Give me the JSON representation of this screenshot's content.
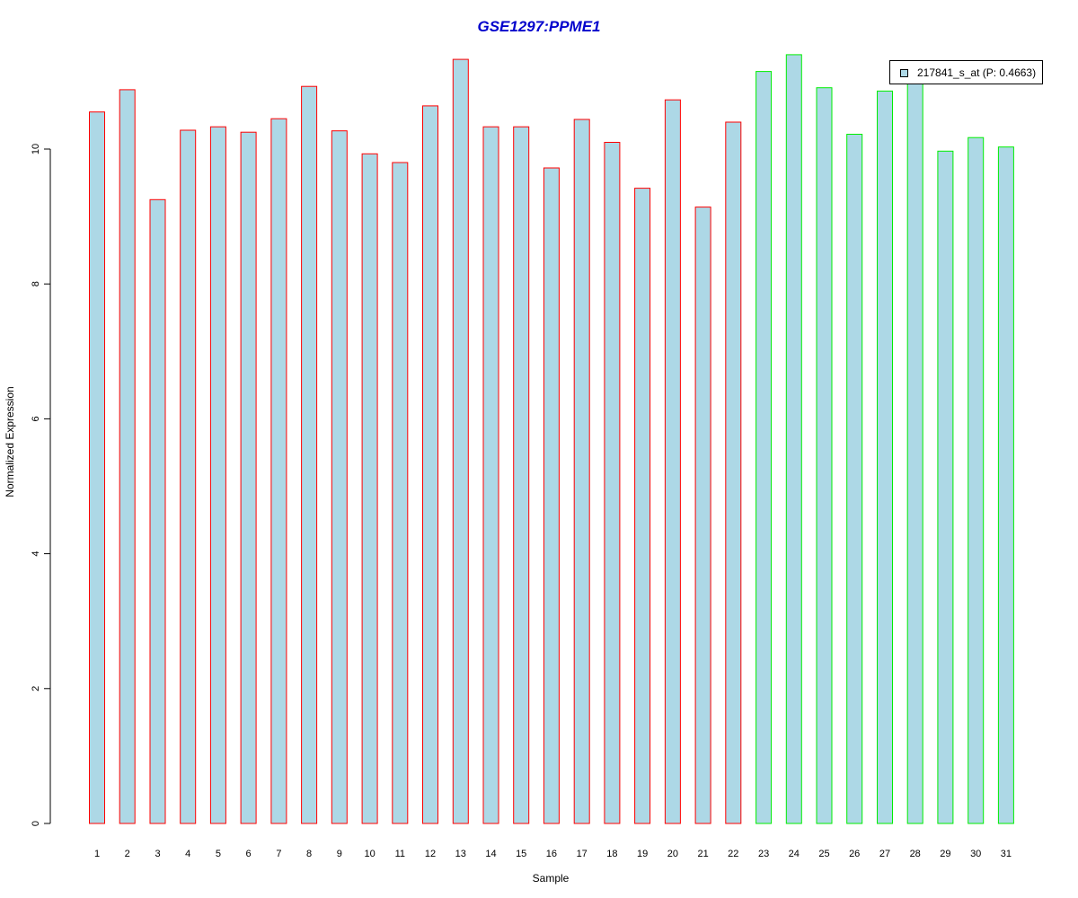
{
  "chart_data": {
    "type": "bar",
    "title": "GSE1297:PPME1",
    "xlabel": "Sample",
    "ylabel": "Normalized Expression",
    "categories": [
      "1",
      "2",
      "3",
      "4",
      "5",
      "6",
      "7",
      "8",
      "9",
      "10",
      "11",
      "12",
      "13",
      "14",
      "15",
      "16",
      "17",
      "18",
      "19",
      "20",
      "21",
      "22",
      "23",
      "24",
      "25",
      "26",
      "27",
      "28",
      "29",
      "30",
      "31"
    ],
    "series": [
      {
        "name": "217841_s_at (P: 0.4663)",
        "values": [
          10.55,
          10.88,
          9.25,
          10.28,
          10.33,
          10.25,
          10.45,
          10.93,
          10.27,
          9.93,
          9.8,
          10.64,
          11.33,
          10.33,
          10.33,
          9.72,
          10.44,
          10.1,
          9.42,
          10.73,
          9.14,
          10.4,
          11.15,
          11.4,
          10.91,
          10.22,
          10.86,
          11.0,
          9.97,
          10.17,
          10.03
        ]
      }
    ],
    "bar_fill": "#add8e6",
    "border_colors": [
      "#ff0000",
      "#ff0000",
      "#ff0000",
      "#ff0000",
      "#ff0000",
      "#ff0000",
      "#ff0000",
      "#ff0000",
      "#ff0000",
      "#ff0000",
      "#ff0000",
      "#ff0000",
      "#ff0000",
      "#ff0000",
      "#ff0000",
      "#ff0000",
      "#ff0000",
      "#ff0000",
      "#ff0000",
      "#ff0000",
      "#ff0000",
      "#ff0000",
      "#00ee00",
      "#00ee00",
      "#00ee00",
      "#00ee00",
      "#00ee00",
      "#00ee00",
      "#00ee00",
      "#00ee00",
      "#00ee00"
    ],
    "yticks": [
      0,
      2,
      4,
      6,
      8,
      10
    ],
    "ylim": [
      0,
      11.33
    ],
    "grid": false,
    "legend_position": "top-right"
  }
}
